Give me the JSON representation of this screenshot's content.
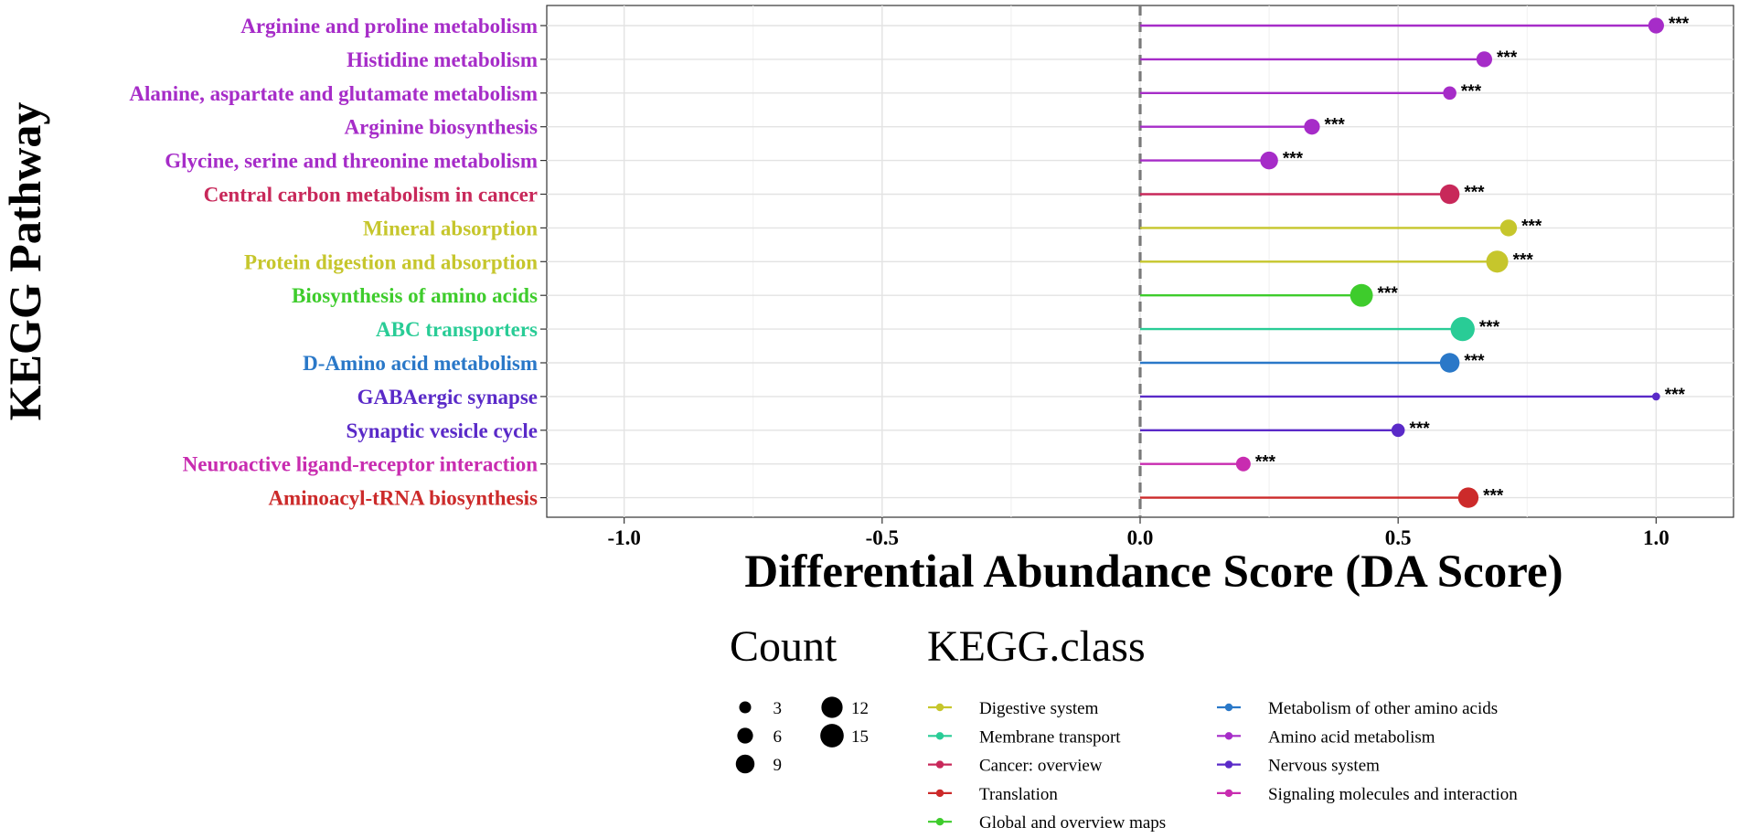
{
  "chart_data": {
    "type": "lollipop",
    "xlabel": "Differential Abundance Score (DA Score)",
    "ylabel": "KEGG Pathway",
    "xlim": [
      -1.15,
      1.15
    ],
    "x_ticks": [
      {
        "value": -1.0,
        "label": "-1.0"
      },
      {
        "value": -0.5,
        "label": "-0.5"
      },
      {
        "value": 0.0,
        "label": "0.0"
      },
      {
        "value": 0.5,
        "label": "0.5"
      },
      {
        "value": 1.0,
        "label": "1.0"
      }
    ],
    "reference_line": 0,
    "pathways": [
      {
        "name": "Arginine and proline metabolism",
        "da": 1.0,
        "count": 6,
        "class": "Amino acid metabolism",
        "sig": "***"
      },
      {
        "name": "Histidine metabolism",
        "da": 0.667,
        "count": 6,
        "class": "Amino acid metabolism",
        "sig": "***"
      },
      {
        "name": "Alanine, aspartate and glutamate metabolism",
        "da": 0.6,
        "count": 4,
        "class": "Amino acid metabolism",
        "sig": "***"
      },
      {
        "name": "Arginine biosynthesis",
        "da": 0.333,
        "count": 6,
        "class": "Amino acid metabolism",
        "sig": "***"
      },
      {
        "name": "Glycine, serine and threonine metabolism",
        "da": 0.25,
        "count": 8,
        "class": "Amino acid metabolism",
        "sig": "***"
      },
      {
        "name": "Central carbon metabolism in cancer",
        "da": 0.6,
        "count": 10,
        "class": "Cancer: overview",
        "sig": "***"
      },
      {
        "name": "Mineral absorption",
        "da": 0.714,
        "count": 7,
        "class": "Digestive system",
        "sig": "***"
      },
      {
        "name": "Protein digestion and absorption",
        "da": 0.692,
        "count": 13,
        "class": "Digestive system",
        "sig": "***"
      },
      {
        "name": "Biosynthesis of amino acids",
        "da": 0.429,
        "count": 14,
        "class": "Global and overview maps",
        "sig": "***"
      },
      {
        "name": "ABC transporters",
        "da": 0.625,
        "count": 16,
        "class": "Membrane transport",
        "sig": "***"
      },
      {
        "name": "D-Amino acid metabolism",
        "da": 0.6,
        "count": 10,
        "class": "Metabolism of other amino acids",
        "sig": "***"
      },
      {
        "name": "GABAergic synapse",
        "da": 1.0,
        "count": 1,
        "class": "Nervous system",
        "sig": "***"
      },
      {
        "name": "Synaptic vesicle cycle",
        "da": 0.5,
        "count": 4,
        "class": "Nervous system",
        "sig": "***"
      },
      {
        "name": "Neuroactive ligand-receptor interaction",
        "da": 0.2,
        "count": 5,
        "class": "Signaling molecules and interaction",
        "sig": "***"
      },
      {
        "name": "Aminoacyl-tRNA biosynthesis",
        "da": 0.636,
        "count": 11,
        "class": "Translation",
        "sig": "***"
      }
    ],
    "class_colors": {
      "Digestive system": "#c6c62c",
      "Membrane transport": "#29cc96",
      "Cancer: overview": "#c8285a",
      "Translation": "#cc2a2a",
      "Global and overview maps": "#3ecc2c",
      "Metabolism of other amino acids": "#2a78c8",
      "Amino acid metabolism": "#a62cc8",
      "Nervous system": "#5a2ac8",
      "Signaling molecules and interaction": "#c82cb0"
    },
    "legend_count": {
      "title": "Count",
      "values": [
        3,
        6,
        9,
        12,
        15
      ]
    },
    "legend_class": {
      "title": "KEGG.class",
      "entries": [
        "Digestive system",
        "Membrane transport",
        "Cancer: overview",
        "Translation",
        "Global and overview maps",
        "Metabolism of other amino acids",
        "Amino acid metabolism",
        "Nervous system",
        "Signaling molecules and interaction"
      ]
    }
  }
}
